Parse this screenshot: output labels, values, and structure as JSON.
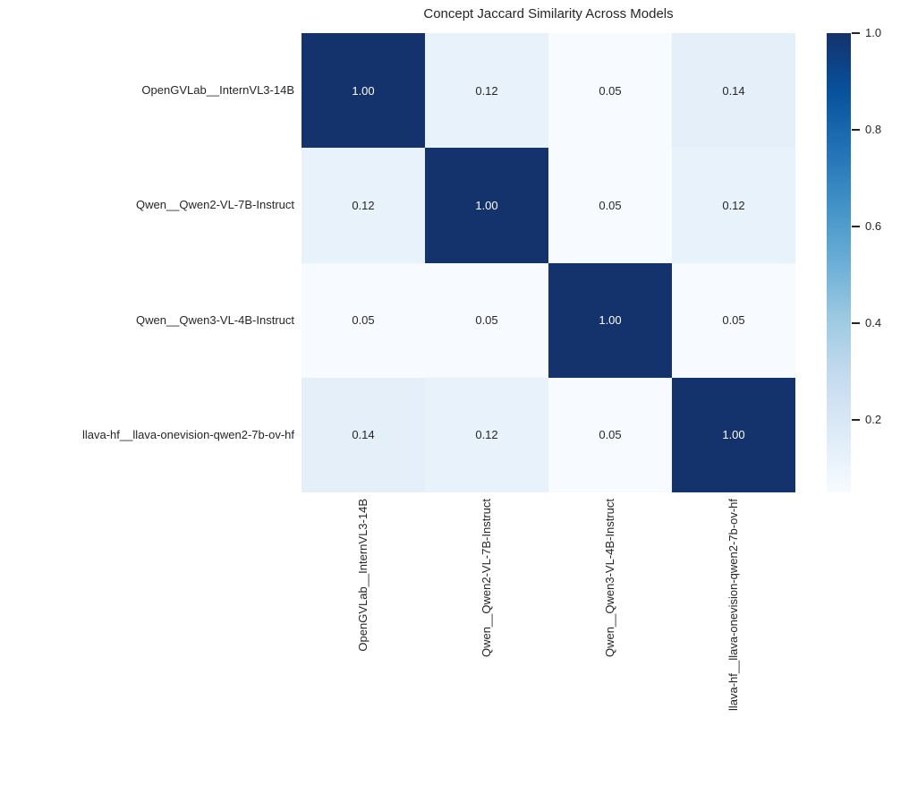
{
  "chart_data": {
    "type": "heatmap",
    "title": "Concept Jaccard Similarity Across Models",
    "x_tick_labels": [
      "OpenGVLab__InternVL3-14B",
      "Qwen__Qwen2-VL-7B-Instruct",
      "Qwen__Qwen3-VL-4B-Instruct",
      "llava-hf__llava-onevision-qwen2-7b-ov-hf"
    ],
    "y_tick_labels": [
      "OpenGVLab__InternVL3-14B",
      "Qwen__Qwen2-VL-7B-Instruct",
      "Qwen__Qwen3-VL-4B-Instruct",
      "llava-hf__llava-onevision-qwen2-7b-ov-hf"
    ],
    "matrix": [
      [
        1.0,
        0.12,
        0.05,
        0.14
      ],
      [
        0.12,
        1.0,
        0.05,
        0.12
      ],
      [
        0.05,
        0.05,
        1.0,
        0.05
      ],
      [
        0.14,
        0.12,
        0.05,
        1.0
      ]
    ],
    "value_decimals": 2,
    "vmin": 0.05,
    "vmax": 1.0,
    "annotations": true,
    "grid": false,
    "colormap_name": "Blues",
    "colormap_stops": [
      [
        0.0,
        "#f7fbff"
      ],
      [
        0.125,
        "#deebf7"
      ],
      [
        0.25,
        "#c6dbef"
      ],
      [
        0.375,
        "#9ecae1"
      ],
      [
        0.5,
        "#6baed6"
      ],
      [
        0.625,
        "#4292c6"
      ],
      [
        0.75,
        "#2171b5"
      ],
      [
        0.875,
        "#08519c"
      ],
      [
        1.0,
        "#14326b"
      ]
    ],
    "colorbar": {
      "position": "right",
      "ticks": [
        0.2,
        0.4,
        0.6,
        0.8,
        1.0
      ],
      "tick_labels": [
        "0.2",
        "0.4",
        "0.6",
        "0.8",
        "1.0"
      ]
    }
  },
  "colors": {
    "background": "#ffffff",
    "text": "#262626",
    "annot_on_dark": "#ffffff",
    "annot_on_light": "#262626"
  }
}
